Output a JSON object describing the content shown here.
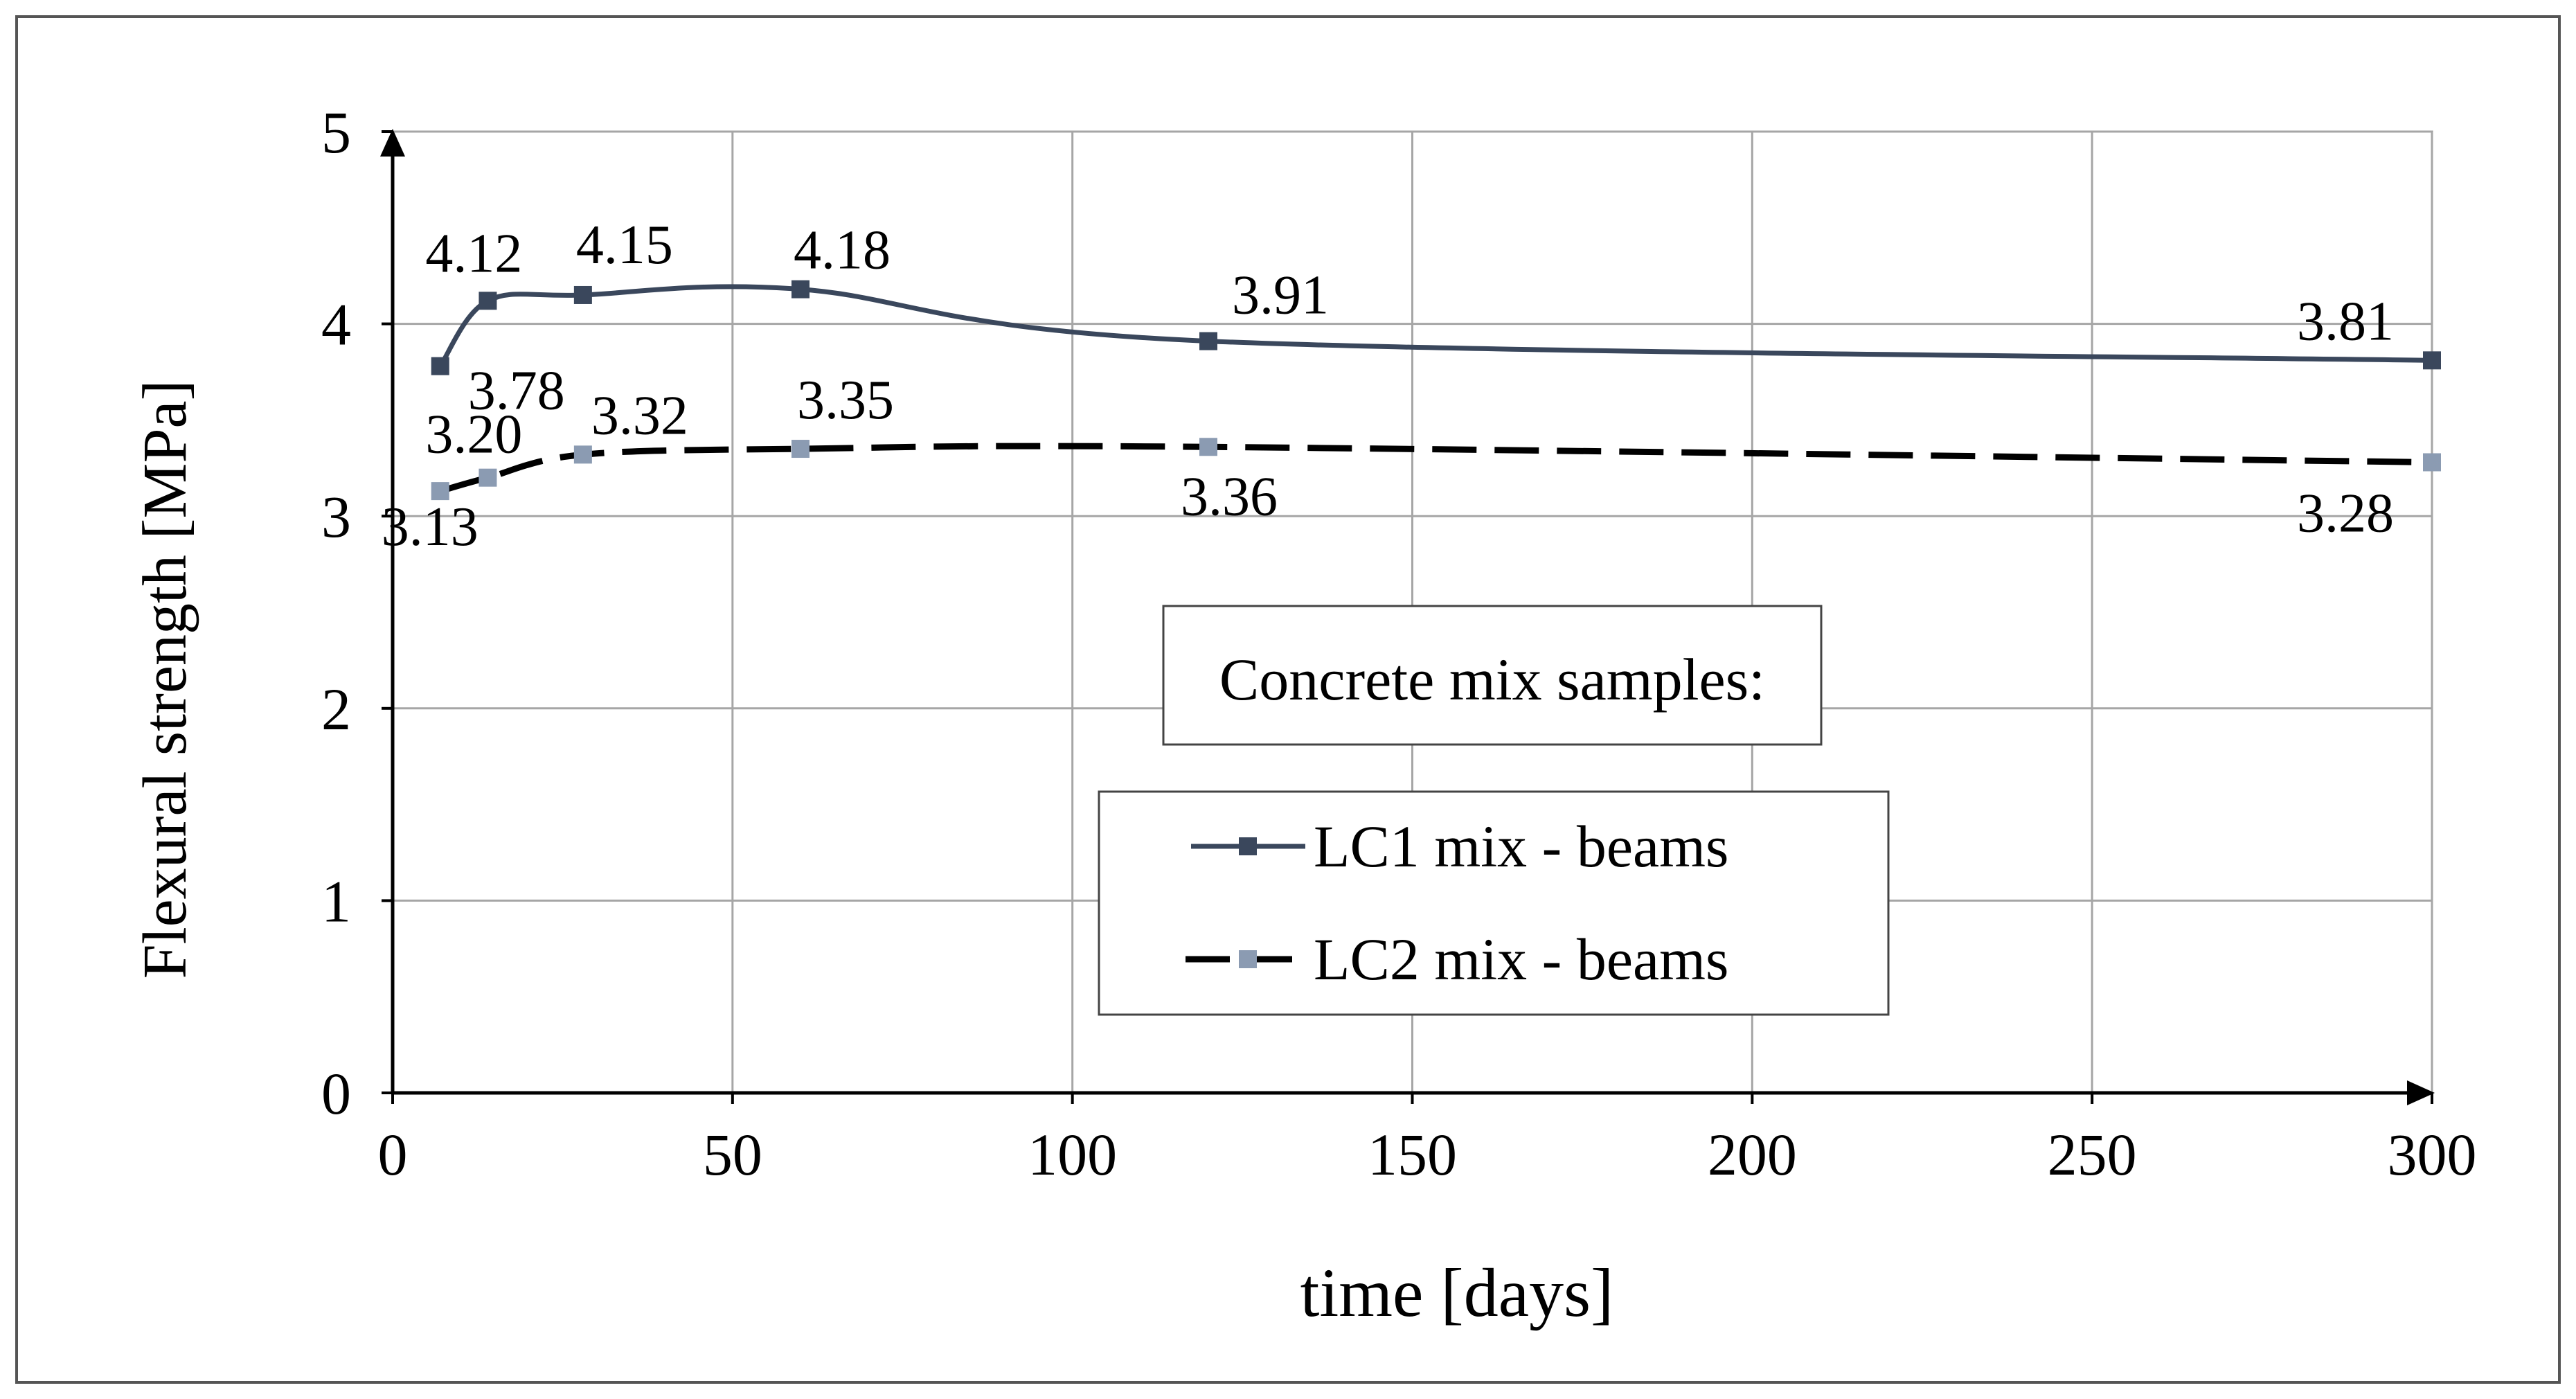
{
  "chart_data": {
    "type": "line",
    "xlabel": "time [days]",
    "ylabel": "Flexural strength [MPa]",
    "xlim": [
      0,
      300
    ],
    "ylim": [
      0,
      5
    ],
    "x_ticks": [
      0,
      50,
      100,
      150,
      200,
      250,
      300
    ],
    "y_ticks": [
      0,
      1,
      2,
      3,
      4,
      5
    ],
    "grid": true,
    "legend": {
      "title": "Concrete mix samples:",
      "position": "center-right, below title box"
    },
    "series": [
      {
        "name": "LC1 mix - beams",
        "style": "solid",
        "marker": "square",
        "color": "#3a475c",
        "marker_color": "#3a475c",
        "x": [
          7,
          14,
          28,
          60,
          120,
          300
        ],
        "values": [
          3.78,
          4.12,
          4.15,
          4.18,
          3.91,
          3.81
        ],
        "labels": [
          "3.78",
          "4.12",
          "4.15",
          "4.18",
          "3.91",
          "3.81"
        ]
      },
      {
        "name": "LC2 mix - beams",
        "style": "dashed",
        "marker": "square",
        "color": "#000000",
        "marker_color": "#8b9bb2",
        "x": [
          7,
          14,
          28,
          60,
          120,
          300
        ],
        "values": [
          3.13,
          3.2,
          3.32,
          3.35,
          3.36,
          3.28
        ],
        "labels": [
          "3.13",
          "3.20",
          "3.32",
          "3.35",
          "3.36",
          "3.28"
        ]
      }
    ]
  }
}
